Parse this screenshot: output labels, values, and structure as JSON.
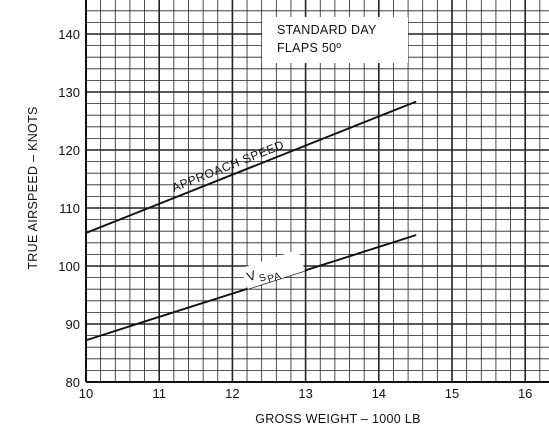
{
  "chart_data": {
    "type": "line",
    "xlabel": "GROSS WEIGHT – 1000 LB",
    "ylabel": "TRUE AIRSPEED – KNOTS",
    "xlim": [
      10,
      16.3
    ],
    "ylim": [
      80,
      145
    ],
    "xticks": [
      10,
      11,
      12,
      13,
      14,
      15,
      16
    ],
    "yticks": [
      80,
      90,
      100,
      110,
      120,
      130,
      140
    ],
    "grid": true,
    "annotation": [
      "STANDARD DAY",
      "FLAPS 50º"
    ],
    "series": [
      {
        "name": "APPROACH SPEED",
        "x": [
          10,
          14.5
        ],
        "y": [
          105.7,
          128.3
        ]
      },
      {
        "name": "V_SPA",
        "label_main": "V",
        "label_sub": "S",
        "label_sub2": "PA",
        "x": [
          10,
          14.5
        ],
        "y": [
          87.2,
          105.3
        ]
      }
    ]
  }
}
